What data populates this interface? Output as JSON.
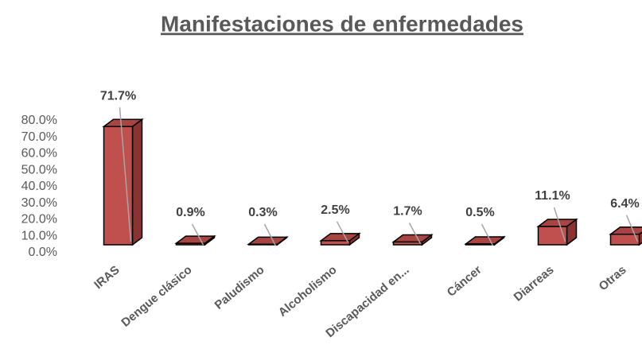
{
  "chart_data": {
    "type": "bar3d",
    "title": "Manifestaciones de enfermedades",
    "categories": [
      "IRAS",
      "Dengue clásico",
      "Paludismo",
      "Alcoholismo",
      "Discapacidad en...",
      "Cáncer",
      "Diarreas",
      "Otras"
    ],
    "values": [
      71.7,
      0.9,
      0.3,
      2.5,
      1.7,
      0.5,
      11.1,
      6.4
    ],
    "value_labels": [
      "71.7%",
      "0.9%",
      "0.3%",
      "2.5%",
      "1.7%",
      "0.5%",
      "11.1%",
      "6.4%"
    ],
    "color": "#c0504d",
    "ylim": [
      0,
      80
    ],
    "yticks": [
      {
        "value": 0,
        "label": "0.0%"
      },
      {
        "value": 10,
        "label": "10.0%"
      },
      {
        "value": 20,
        "label": "20.0%"
      },
      {
        "value": 30,
        "label": "30.0%"
      },
      {
        "value": 40,
        "label": "40.0%"
      },
      {
        "value": 50,
        "label": "50.0%"
      },
      {
        "value": 60,
        "label": "60.0%"
      },
      {
        "value": 70,
        "label": "70.0%"
      },
      {
        "value": 80,
        "label": "80.0%"
      }
    ]
  }
}
